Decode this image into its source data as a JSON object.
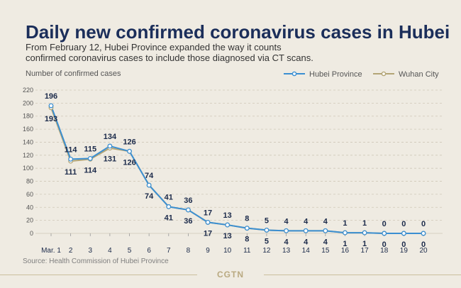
{
  "title": "Daily new confirmed coronavirus cases in Hubei",
  "subtitle": "From February 12, Hubei Province expanded the way it counts confirmed coronavirus cases to include those diagnosed via CT scans.",
  "source": "Source: Health Commission of Hubei Province",
  "brand": "CGTN",
  "colors": {
    "hubei": "#3b8fd2",
    "wuhan": "#b3a576"
  },
  "chart_data": {
    "type": "line",
    "title": "Daily new confirmed coronavirus cases in Hubei",
    "xlabel": "",
    "ylabel": "Number of confirmed cases",
    "ylim": [
      0,
      220
    ],
    "yticks": [
      0,
      20,
      40,
      60,
      80,
      100,
      120,
      140,
      160,
      180,
      200,
      220
    ],
    "categories": [
      "Mar. 1",
      "2",
      "3",
      "4",
      "5",
      "6",
      "7",
      "8",
      "9",
      "10",
      "11",
      "12",
      "13",
      "14",
      "15",
      "16",
      "17",
      "18",
      "19",
      "20"
    ],
    "series": [
      {
        "name": "Hubei Province",
        "values": [
          196,
          114,
          115,
          134,
          126,
          74,
          41,
          36,
          17,
          13,
          8,
          5,
          4,
          4,
          4,
          1,
          1,
          0,
          0,
          0
        ]
      },
      {
        "name": "Wuhan City",
        "values": [
          193,
          111,
          114,
          131,
          126,
          74,
          41,
          36,
          17,
          13,
          8,
          5,
          4,
          4,
          4,
          1,
          1,
          0,
          0,
          0
        ]
      }
    ],
    "grid": true,
    "legend": "top-right"
  }
}
